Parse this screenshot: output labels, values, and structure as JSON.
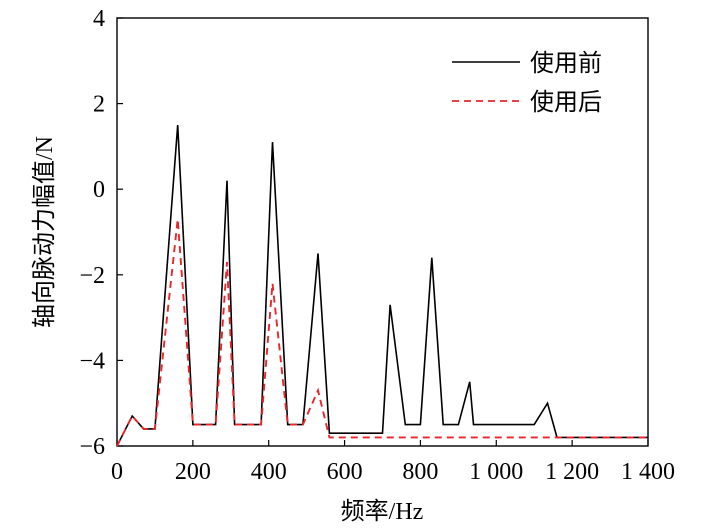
{
  "chart_data": {
    "type": "line",
    "xlabel": "频率/Hz",
    "ylabel": "轴向脉动力幅值/N",
    "xlim": [
      0,
      1400
    ],
    "ylim": [
      -6,
      4
    ],
    "x_ticks": [
      0,
      200,
      400,
      600,
      800,
      1000,
      1200,
      1400
    ],
    "x_tick_labels": [
      "0",
      "200",
      "400",
      "600",
      "800",
      "1 000",
      "1 200",
      "1 400"
    ],
    "y_ticks": [
      -6,
      -4,
      -2,
      0,
      2,
      4
    ],
    "y_tick_labels": [
      "−6",
      "−4",
      "−2",
      "0",
      "2",
      "4"
    ],
    "grid": false,
    "legend_position": "top-right",
    "colors": {
      "before": "#000000",
      "after": "#e8262b"
    },
    "series": [
      {
        "name": "使用前",
        "style": "solid",
        "x": [
          0,
          40,
          70,
          100,
          160,
          200,
          260,
          290,
          310,
          360,
          380,
          410,
          450,
          490,
          530,
          560,
          620,
          670,
          700,
          720,
          760,
          800,
          830,
          860,
          900,
          930,
          940,
          980,
          1020,
          1060,
          1100,
          1135,
          1160,
          1170,
          1400
        ],
        "y": [
          -6,
          -5.3,
          -5.6,
          -5.6,
          1.5,
          -5.5,
          -5.5,
          0.2,
          -5.5,
          -5.5,
          -5.5,
          1.1,
          -5.5,
          -5.5,
          -1.5,
          -5.7,
          -5.7,
          -5.7,
          -5.7,
          -2.7,
          -5.5,
          -5.5,
          -1.6,
          -5.5,
          -5.5,
          -4.5,
          -5.5,
          -5.5,
          -5.5,
          -5.5,
          -5.5,
          -5.0,
          -5.8,
          -5.8,
          -5.8
        ]
      },
      {
        "name": "使用后",
        "style": "dashed",
        "x": [
          0,
          40,
          70,
          100,
          160,
          200,
          260,
          290,
          310,
          360,
          380,
          410,
          450,
          490,
          530,
          560,
          1400
        ],
        "y": [
          -6,
          -5.3,
          -5.6,
          -5.6,
          -0.7,
          -5.5,
          -5.5,
          -1.7,
          -5.5,
          -5.5,
          -5.5,
          -2.2,
          -5.5,
          -5.5,
          -4.7,
          -5.8,
          -5.8
        ]
      }
    ]
  }
}
